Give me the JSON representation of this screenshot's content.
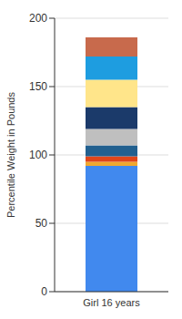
{
  "chart_data": {
    "type": "bar",
    "stacked": true,
    "y_label": "Percentile Weight in Pounds",
    "categories": [
      "Girl 16 years"
    ],
    "series": [
      {
        "color": "#4189EE",
        "values": [
          92
        ]
      },
      {
        "color": "#F0A830",
        "values": [
          3
        ]
      },
      {
        "color": "#E0461A",
        "values": [
          4
        ]
      },
      {
        "color": "#22608F",
        "values": [
          8
        ]
      },
      {
        "color": "#BFBFBF",
        "values": [
          12
        ]
      },
      {
        "color": "#1B3A6A",
        "values": [
          16
        ]
      },
      {
        "color": "#FFE58A",
        "values": [
          20
        ]
      },
      {
        "color": "#1E9DE0",
        "values": [
          17
        ]
      },
      {
        "color": "#C86A4C",
        "values": [
          14
        ]
      }
    ],
    "ylim": [
      0,
      200
    ],
    "yticks": [
      0,
      50,
      100,
      150,
      200
    ],
    "grid": true
  }
}
